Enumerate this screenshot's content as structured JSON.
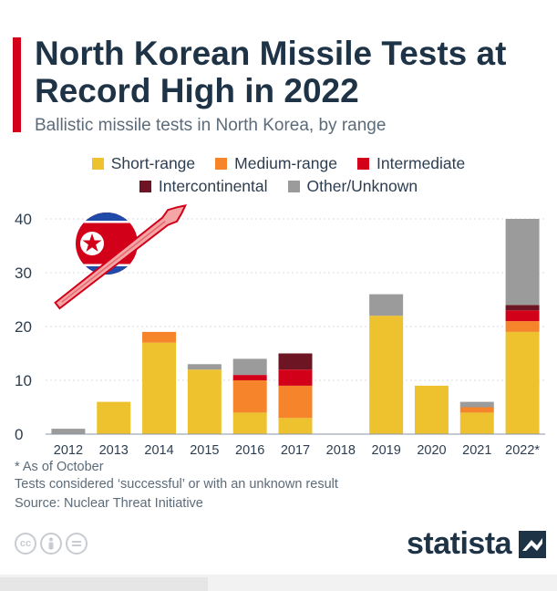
{
  "title": "North Korean Missile Tests at Record High in 2022",
  "subtitle": "Ballistic missile tests in North Korea, by range",
  "colors": {
    "accent": "#d3001a",
    "short_range": "#eec22f",
    "medium_range": "#f5842a",
    "intermediate": "#d3001a",
    "intercontinental": "#6e1523",
    "other_unknown": "#9b9b9b"
  },
  "footnotes": {
    "asterisk": "* As of October",
    "note": "Tests considered ‘successful’ or with an unknown result",
    "source": "Source: Nuclear Threat Initiative"
  },
  "license_icons": [
    "cc-icon",
    "attribution-icon",
    "no-derivatives-icon"
  ],
  "brand": {
    "name": "statista",
    "icon": "statista-logo-icon"
  },
  "illustration": {
    "icon": "north-korea-flag-missile-icon"
  },
  "chart_data": {
    "type": "bar",
    "stacked": true,
    "categories": [
      "2012",
      "2013",
      "2014",
      "2015",
      "2016",
      "2017",
      "2018",
      "2019",
      "2020",
      "2021",
      "2022*"
    ],
    "series": [
      {
        "name": "Short-range",
        "color": "#eec22f",
        "values": [
          0,
          6,
          17,
          12,
          4,
          3,
          0,
          22,
          9,
          4,
          19
        ]
      },
      {
        "name": "Medium-range",
        "color": "#f5842a",
        "values": [
          0,
          0,
          2,
          0,
          6,
          6,
          0,
          0,
          0,
          1,
          2
        ]
      },
      {
        "name": "Intermediate",
        "color": "#d3001a",
        "values": [
          0,
          0,
          0,
          0,
          1,
          3,
          0,
          0,
          0,
          0,
          2
        ]
      },
      {
        "name": "Intercontinental",
        "color": "#6e1523",
        "values": [
          0,
          0,
          0,
          0,
          0,
          3,
          0,
          0,
          0,
          0,
          1
        ]
      },
      {
        "name": "Other/Unknown",
        "color": "#9b9b9b",
        "values": [
          1,
          0,
          0,
          1,
          3,
          0,
          0,
          4,
          0,
          1,
          16
        ]
      }
    ],
    "ylim": [
      0,
      40
    ],
    "yticks": [
      "0",
      "10",
      "20",
      "30",
      "40"
    ],
    "grid": true,
    "legend_position": "top-center"
  }
}
